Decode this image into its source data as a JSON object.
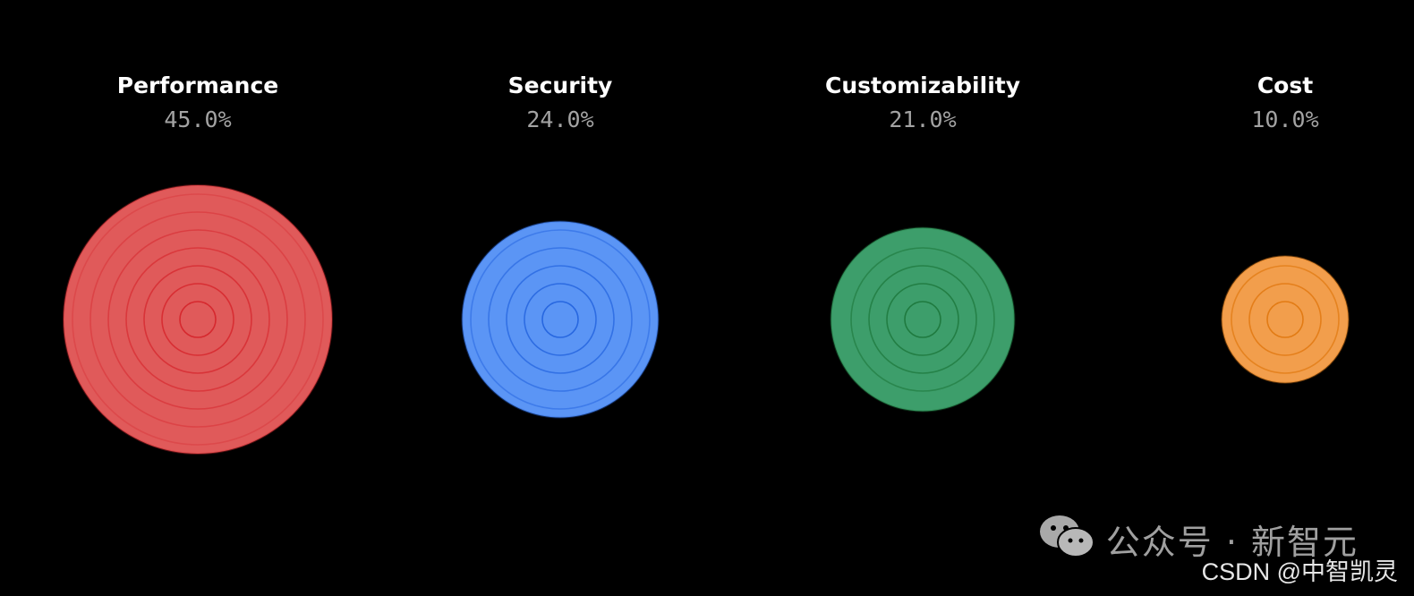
{
  "chart_data": {
    "type": "bubble",
    "categories": [
      "Performance",
      "Security",
      "Customizability",
      "Cost"
    ],
    "values": [
      45.0,
      24.0,
      21.0,
      10.0
    ],
    "value_labels": [
      "45.0%",
      "24.0%",
      "21.0%",
      "10.0%"
    ],
    "colors": [
      "#e05a5a",
      "#5b95f5",
      "#3d9e6b",
      "#f29e4c"
    ],
    "ring_colors": [
      "#d6282e",
      "#2767e0",
      "#1f7a3f",
      "#e27b14"
    ],
    "unit": "%",
    "grid": false,
    "legend": "none"
  },
  "watermark": {
    "text": "公众号 · 新智元",
    "credit": "CSDN @中智凯灵",
    "icon": "wechat-icon"
  },
  "background": "#000000"
}
